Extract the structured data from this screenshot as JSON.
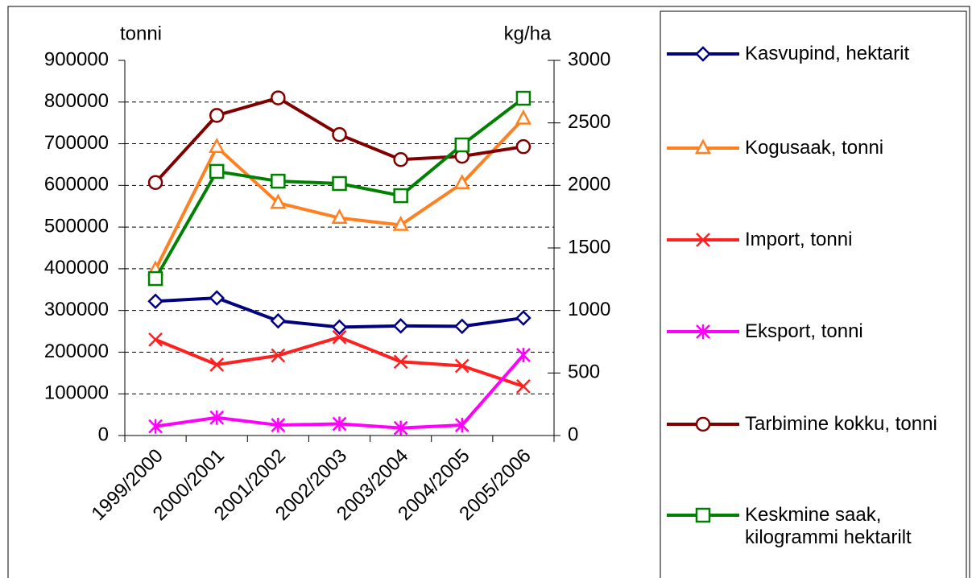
{
  "chart_data": {
    "type": "line",
    "y_label": "tonni",
    "y2_label": "kg/ha",
    "categories": [
      "1999/2000",
      "2000/2001",
      "2001/2002",
      "2002/2003",
      "2003/2004",
      "2004/2005",
      "2005/2006"
    ],
    "ylim": [
      0,
      900000
    ],
    "yticks": [
      0,
      100000,
      200000,
      300000,
      400000,
      500000,
      600000,
      700000,
      800000,
      900000
    ],
    "y2lim": [
      0,
      3000
    ],
    "y2ticks": [
      0,
      500,
      1000,
      1500,
      2000,
      2500,
      3000
    ],
    "grid": true,
    "legend": "right",
    "series": [
      {
        "name": "Kasvupind, hektarit",
        "color": "#000080",
        "marker": "diamond",
        "values": [
          322000,
          330000,
          275000,
          260000,
          263000,
          262000,
          282000
        ]
      },
      {
        "name": "Kogusaak, tonni",
        "color": "#ff8020",
        "marker": "triangle",
        "values": [
          398000,
          692000,
          558000,
          522000,
          505000,
          605000,
          760000
        ]
      },
      {
        "name": "Import, tonni",
        "color": "#ff2020",
        "marker": "x",
        "values": [
          230000,
          170000,
          192000,
          236000,
          177000,
          167000,
          118000
        ]
      },
      {
        "name": "Eksport, tonni",
        "color": "#ff00ff",
        "marker": "star",
        "values": [
          22000,
          43000,
          25000,
          28000,
          18000,
          25000,
          193000
        ]
      },
      {
        "name": "Tarbimine kokku, tonni",
        "color": "#800000",
        "marker": "circle",
        "values": [
          607000,
          768000,
          810000,
          722000,
          662000,
          670000,
          693000
        ]
      },
      {
        "name": "Keskmine saak, kilogrammi hektarilt",
        "color": "#008000",
        "marker": "square",
        "axis": "y2",
        "values": [
          1255,
          2112,
          2034,
          2015,
          1918,
          2324,
          2697
        ]
      }
    ]
  }
}
